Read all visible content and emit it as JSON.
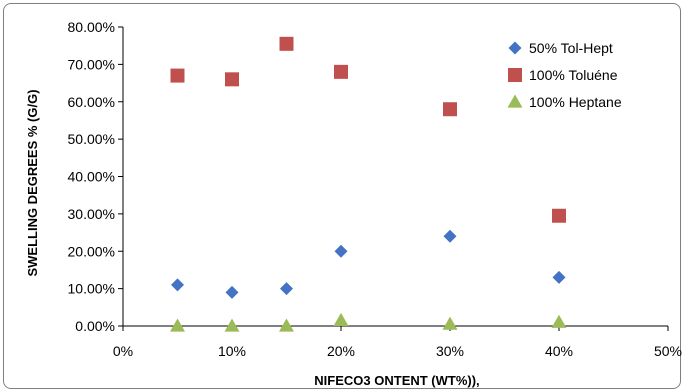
{
  "chart_data": {
    "type": "scatter",
    "xlabel": "NIFECO3 ONTENT (WT%)),",
    "ylabel": "SWELLING DEGREES % (G/G)",
    "xlim": [
      0,
      0.5
    ],
    "ylim": [
      0,
      0.8
    ],
    "x_ticks": [
      "0%",
      "10%",
      "20%",
      "30%",
      "40%",
      "50%"
    ],
    "y_ticks": [
      "0.00%",
      "10.00%",
      "20.00%",
      "30.00%",
      "40.00%",
      "50.00%",
      "60.00%",
      "70.00%",
      "80.00%"
    ],
    "grid": false,
    "legend_position": "top-right",
    "series": [
      {
        "name": "50% Tol-Hept",
        "marker": "diamond",
        "color": "#4472C4",
        "x": [
          0.05,
          0.1,
          0.15,
          0.2,
          0.3,
          0.4
        ],
        "y": [
          0.11,
          0.09,
          0.1,
          0.2,
          0.24,
          0.13
        ]
      },
      {
        "name": "100% Toluéne",
        "marker": "square",
        "color": "#C0504D",
        "x": [
          0.05,
          0.1,
          0.15,
          0.2,
          0.3,
          0.4
        ],
        "y": [
          0.67,
          0.66,
          0.755,
          0.68,
          0.58,
          0.295
        ]
      },
      {
        "name": "100% Heptane",
        "marker": "triangle",
        "color": "#9BBB59",
        "x": [
          0.05,
          0.1,
          0.15,
          0.2,
          0.3,
          0.4
        ],
        "y": [
          0.0,
          0.0,
          0.0,
          0.015,
          0.005,
          0.01
        ]
      }
    ]
  }
}
